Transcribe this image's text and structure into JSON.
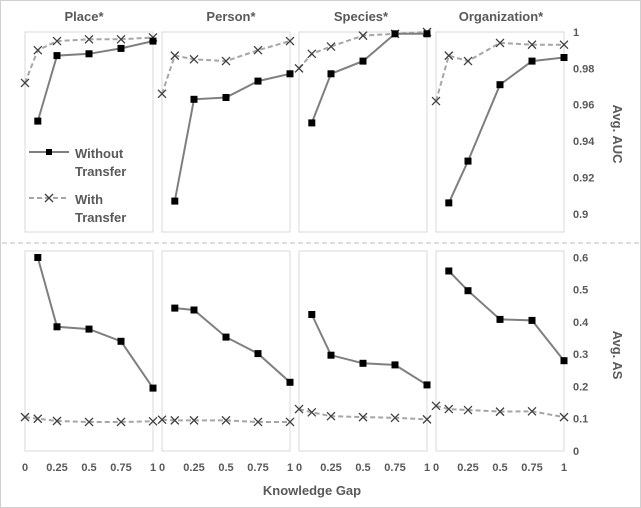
{
  "chart_data": {
    "type": "line",
    "panel_titles": [
      "Place*",
      "Person*",
      "Species*",
      "Organization*"
    ],
    "x_ticks": [
      "0",
      "0.25",
      "0.5",
      "0.75",
      "1"
    ],
    "x_tick_values": [
      0,
      0.25,
      0.5,
      0.75,
      1
    ],
    "xlim": [
      0,
      1
    ],
    "xlabel": "Knowledge Gap",
    "legend": {
      "position": "inside-left",
      "entries": [
        {
          "label": "Without Transfer",
          "lines": [
            "Without",
            "Transfer"
          ],
          "marker": "square",
          "style": "solid"
        },
        {
          "label": "With Transfer",
          "lines": [
            "With",
            "Transfer"
          ],
          "marker": "x",
          "style": "dashed"
        }
      ]
    },
    "series_style": {
      "without": {
        "color": "#7f7f7f",
        "marker_color": "#000000"
      },
      "with": {
        "color": "#a6a6a6",
        "marker_color": "#404040"
      }
    },
    "rows": [
      {
        "ylabel": "Avg. AUC",
        "ylim": [
          0.89,
          1.0
        ],
        "y_ticks": [
          0.9,
          0.92,
          0.94,
          0.96,
          0.98,
          1
        ],
        "y_tick_labels": [
          "0.9",
          "0.92",
          "0.94",
          "0.96",
          "0.98",
          "1"
        ],
        "panels": [
          {
            "title": "Place*",
            "without": {
              "x": [
                0.1,
                0.25,
                0.5,
                0.75,
                1.0
              ],
              "y": [
                0.951,
                0.987,
                0.988,
                0.991,
                0.995
              ]
            },
            "with": {
              "x": [
                0.0,
                0.1,
                0.25,
                0.5,
                0.75,
                1.0
              ],
              "y": [
                0.972,
                0.99,
                0.995,
                0.996,
                0.996,
                0.997
              ]
            }
          },
          {
            "title": "Person*",
            "without": {
              "x": [
                0.1,
                0.25,
                0.5,
                0.75,
                1.0
              ],
              "y": [
                0.907,
                0.963,
                0.964,
                0.973,
                0.977
              ]
            },
            "with": {
              "x": [
                0.0,
                0.1,
                0.25,
                0.5,
                0.75,
                1.0
              ],
              "y": [
                0.966,
                0.987,
                0.985,
                0.984,
                0.99,
                0.995
              ]
            }
          },
          {
            "title": "Species*",
            "without": {
              "x": [
                0.1,
                0.25,
                0.5,
                0.75,
                1.0
              ],
              "y": [
                0.95,
                0.977,
                0.984,
                0.999,
                0.999
              ]
            },
            "with": {
              "x": [
                0.0,
                0.1,
                0.25,
                0.5,
                0.75,
                1.0
              ],
              "y": [
                0.98,
                0.988,
                0.992,
                0.998,
                0.999,
                1.0
              ]
            }
          },
          {
            "title": "Organization*",
            "without": {
              "x": [
                0.1,
                0.25,
                0.5,
                0.75,
                1.0
              ],
              "y": [
                0.906,
                0.929,
                0.971,
                0.984,
                0.986
              ]
            },
            "with": {
              "x": [
                0.0,
                0.1,
                0.25,
                0.5,
                0.75,
                1.0
              ],
              "y": [
                0.962,
                0.987,
                0.984,
                0.994,
                0.993,
                0.993
              ]
            }
          }
        ]
      },
      {
        "ylabel": "Avg. AS",
        "ylim": [
          0,
          0.62
        ],
        "y_ticks": [
          0,
          0.1,
          0.2,
          0.3,
          0.4,
          0.5,
          0.6
        ],
        "y_tick_labels": [
          "0",
          "0.1",
          "0.2",
          "0.3",
          "0.4",
          "0.5",
          "0.6"
        ],
        "panels": [
          {
            "title": "Place*",
            "without": {
              "x": [
                0.1,
                0.25,
                0.5,
                0.75,
                1.0
              ],
              "y": [
                0.6,
                0.385,
                0.378,
                0.34,
                0.195
              ]
            },
            "with": {
              "x": [
                0.0,
                0.1,
                0.25,
                0.5,
                0.75,
                1.0
              ],
              "y": [
                0.105,
                0.1,
                0.093,
                0.09,
                0.09,
                0.092
              ]
            }
          },
          {
            "title": "Person*",
            "without": {
              "x": [
                0.1,
                0.25,
                0.5,
                0.75,
                1.0
              ],
              "y": [
                0.443,
                0.437,
                0.353,
                0.302,
                0.213
              ]
            },
            "with": {
              "x": [
                0.0,
                0.1,
                0.25,
                0.5,
                0.75,
                1.0
              ],
              "y": [
                0.097,
                0.095,
                0.095,
                0.095,
                0.09,
                0.09
              ]
            }
          },
          {
            "title": "Species*",
            "without": {
              "x": [
                0.1,
                0.25,
                0.5,
                0.75,
                1.0
              ],
              "y": [
                0.423,
                0.297,
                0.272,
                0.267,
                0.205
              ]
            },
            "with": {
              "x": [
                0.0,
                0.1,
                0.25,
                0.5,
                0.75,
                1.0
              ],
              "y": [
                0.13,
                0.12,
                0.108,
                0.105,
                0.103,
                0.098
              ]
            }
          },
          {
            "title": "Organization*",
            "without": {
              "x": [
                0.1,
                0.25,
                0.5,
                0.75,
                1.0
              ],
              "y": [
                0.558,
                0.497,
                0.408,
                0.405,
                0.28
              ]
            },
            "with": {
              "x": [
                0.0,
                0.1,
                0.25,
                0.5,
                0.75,
                1.0
              ],
              "y": [
                0.14,
                0.13,
                0.127,
                0.122,
                0.123,
                0.105
              ]
            }
          }
        ]
      }
    ]
  }
}
